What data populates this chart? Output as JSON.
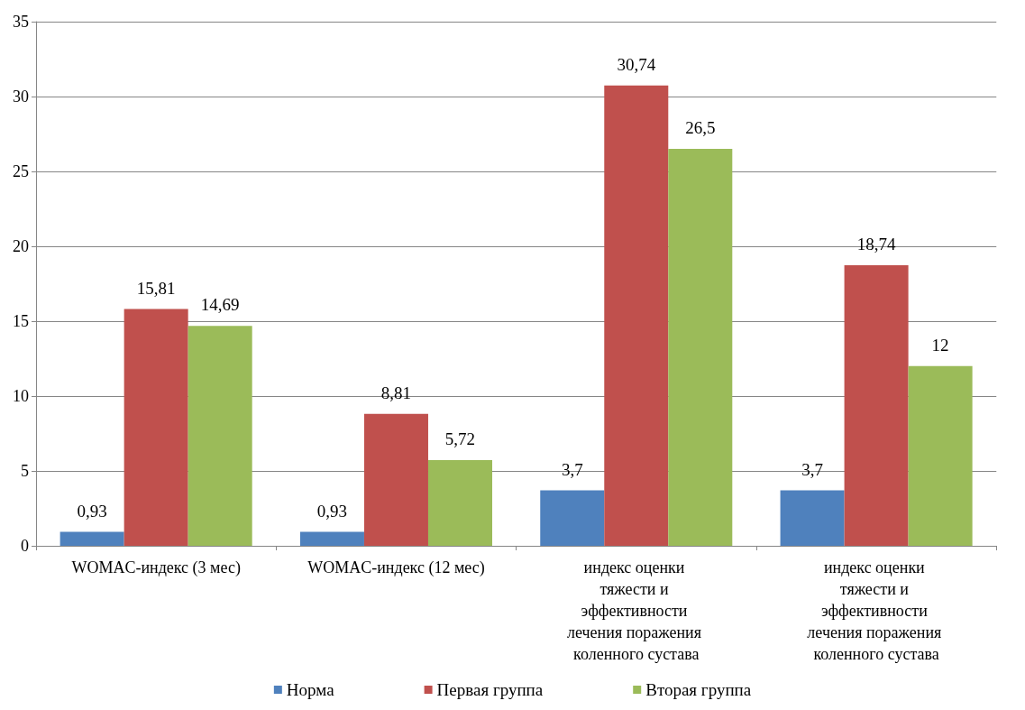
{
  "chart_data": {
    "type": "bar",
    "categories": [
      "WOMAC-индекс (3 мес)",
      "WOMAC-индекс (12 мес)",
      "индекс оценки тяжести и эффективности лечения поражения коленного сустава",
      "индекс оценки тяжести и эффективности лечения поражения коленного сустава"
    ],
    "series": [
      {
        "name": "Норма",
        "color": "#4f81bd",
        "values": [
          0.93,
          0.93,
          3.7,
          3.7
        ],
        "value_labels": [
          "0,93",
          "0,93",
          "3,7",
          "3,7"
        ]
      },
      {
        "name": "Первая группа",
        "color": "#c0504d",
        "values": [
          15.81,
          8.81,
          30.74,
          18.74
        ],
        "value_labels": [
          "15,81",
          "8,81",
          "30,74",
          "18,74"
        ]
      },
      {
        "name": "Вторая группа",
        "color": "#9bbb59",
        "values": [
          14.69,
          5.72,
          26.5,
          12
        ],
        "value_labels": [
          "14,69",
          "5,72",
          "26,5",
          "12"
        ]
      }
    ],
    "ylim": [
      0,
      35
    ],
    "yticks": [
      0,
      5,
      10,
      15,
      20,
      25,
      30,
      35
    ],
    "grid": "y",
    "legend": "bottom"
  }
}
